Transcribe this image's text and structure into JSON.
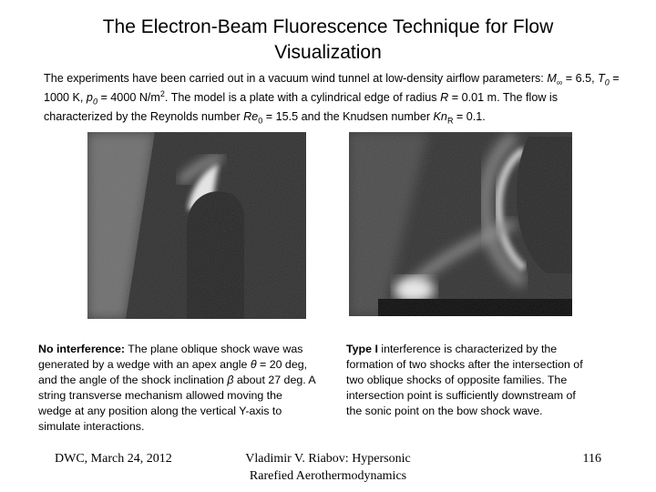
{
  "header": {
    "title": "The Electron-Beam Fluorescence Technique for Flow Visualization"
  },
  "intro": [
    "The experiments have been carried out in a vacuum wind tunnel at low-density airflow parameters: ",
    "M",
    "∞",
    " = 6.5, ",
    "T",
    "0",
    " = 1000 K, ",
    "p",
    "0",
    " = 4000 N/m",
    "2",
    ". The model is a plate with a cylindrical edge of radius ",
    "R",
    " = 0.01 m. The flow is characterized by the Reynolds number ",
    "Re",
    "0",
    " = 15.5 and the Knudsen number ",
    "Kn",
    "R",
    " = 0.1."
  ],
  "captions": [
    [
      "No interference:",
      " The plane oblique shock wave was generated by a wedge with an apex angle ",
      "θ",
      " = 20 deg, and the angle of the shock inclination ",
      "β",
      " about 27 deg. A string transverse mechanism allowed moving the wedge at any position along the vertical Y-axis to simulate interactions."
    ],
    [
      "Type I",
      " interference is characterized by the formation of two shocks after the intersection of two oblique shocks of opposite families. The intersection point is sufficiently downstream of the sonic point on the bow shock wave."
    ]
  ],
  "footer": {
    "date": "DWC, March 24, 2012",
    "author": "Vladimir V. Riabov: Hypersonic Rarefied Aerothermodynamics",
    "page": "116"
  }
}
